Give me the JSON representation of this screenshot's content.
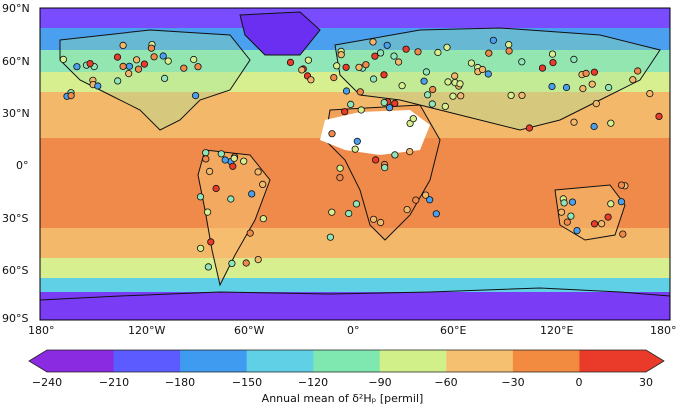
{
  "lat_ticks": [
    "90°N",
    "60°N",
    "30°N",
    "0°",
    "30°S",
    "60°S",
    "90°S"
  ],
  "lon_ticks": [
    "180°",
    "120°W",
    "60°W",
    "0°",
    "60°E",
    "120°E",
    "180°"
  ],
  "colorbar": {
    "label_text": "Annual mean of δ²Hₚ [permil]",
    "ticks": [
      "−240",
      "−210",
      "−180",
      "−150",
      "−120",
      "−90",
      "−60",
      "−30",
      "0",
      "30"
    ],
    "colors": [
      "#8a2be2",
      "#5b5bff",
      "#3f9bef",
      "#5fd0e6",
      "#7fe8b0",
      "#d2f08a",
      "#f5c070",
      "#f28a40",
      "#ea3a2a"
    ]
  },
  "zones": {
    "polar_north": "#7a4cff",
    "subpolar_north": "#4aa0ee",
    "midlat_north": "#8fe6b8",
    "temperate_north": "#d8ef8f",
    "subtropic_north": "#f4b86a",
    "tropics": "#f08a4a",
    "subtropic_south": "#f4b86a",
    "midlat_south": "#d8ef8f",
    "subpolar_south": "#5fd0e6",
    "antarctica": "#7a3cf5",
    "sahara": "#ffffff"
  }
}
